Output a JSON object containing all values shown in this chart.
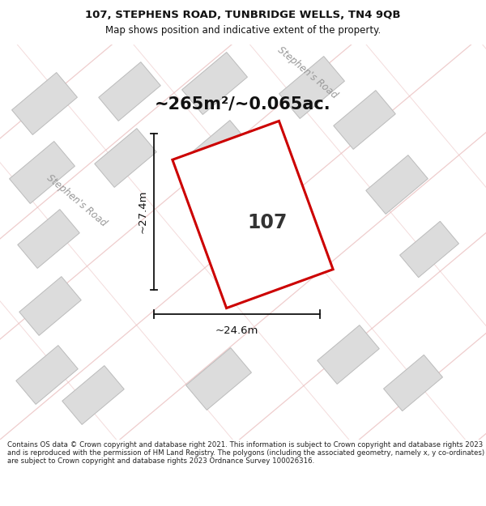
{
  "title_line1": "107, STEPHENS ROAD, TUNBRIDGE WELLS, TN4 9QB",
  "title_line2": "Map shows position and indicative extent of the property.",
  "footer_text": "Contains OS data © Crown copyright and database right 2021. This information is subject to Crown copyright and database rights 2023 and is reproduced with the permission of HM Land Registry. The polygons (including the associated geometry, namely x, y co-ordinates) are subject to Crown copyright and database rights 2023 Ordnance Survey 100026316.",
  "area_label": "~265m²/~0.065ac.",
  "number_label": "107",
  "width_label": "~24.6m",
  "height_label": "~27.4m",
  "map_bg": "#efefef",
  "plot_outline_color": "#cc0000",
  "building_fill": "#dcdcdc",
  "building_edge": "#bbbbbb",
  "road_label_color": "#999999",
  "road_line_color": "#e8b8b8",
  "dim_line_color": "#111111",
  "title_color": "#111111",
  "footer_color": "#222222",
  "title_fontsize": 9.5,
  "subtitle_fontsize": 8.5,
  "area_fontsize": 15,
  "number_fontsize": 17,
  "dim_fontsize": 9.5,
  "road_label_fontsize": 8.5,
  "footer_fontsize": 6.2
}
